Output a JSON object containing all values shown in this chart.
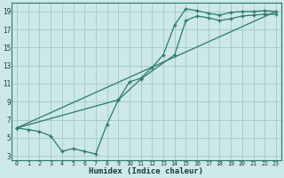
{
  "xlabel": "Humidex (Indice chaleur)",
  "bg_color": "#cce8e8",
  "grid_color": "#aacccc",
  "line_color": "#2a7a6a",
  "xlim": [
    -0.5,
    23.5
  ],
  "ylim": [
    2.5,
    20.0
  ],
  "xticks": [
    0,
    1,
    2,
    3,
    4,
    5,
    6,
    7,
    8,
    9,
    10,
    11,
    12,
    13,
    14,
    15,
    16,
    17,
    18,
    19,
    20,
    21,
    22,
    23
  ],
  "yticks": [
    3,
    5,
    7,
    9,
    11,
    13,
    15,
    17,
    19
  ],
  "line1_x": [
    0,
    1,
    2,
    3,
    4,
    5,
    6,
    7,
    8,
    9,
    10,
    11,
    12,
    13,
    14,
    15,
    16,
    17,
    18,
    19,
    20,
    21,
    22,
    23
  ],
  "line1_y": [
    6.1,
    5.9,
    5.7,
    5.2,
    3.5,
    3.8,
    3.5,
    3.2,
    6.5,
    9.2,
    11.2,
    11.6,
    12.8,
    14.2,
    17.5,
    19.3,
    19.1,
    18.8,
    18.6,
    18.9,
    19.0,
    19.0,
    19.1,
    19.0
  ],
  "line2_x": [
    0,
    23
  ],
  "line2_y": [
    6.1,
    19.0
  ],
  "line3_x": [
    0,
    9,
    11,
    14,
    15,
    16,
    17,
    18,
    19,
    20,
    21,
    22,
    23
  ],
  "line3_y": [
    6.1,
    9.2,
    11.5,
    14.2,
    18.0,
    18.5,
    18.3,
    18.0,
    18.2,
    18.5,
    18.6,
    18.7,
    18.7
  ]
}
